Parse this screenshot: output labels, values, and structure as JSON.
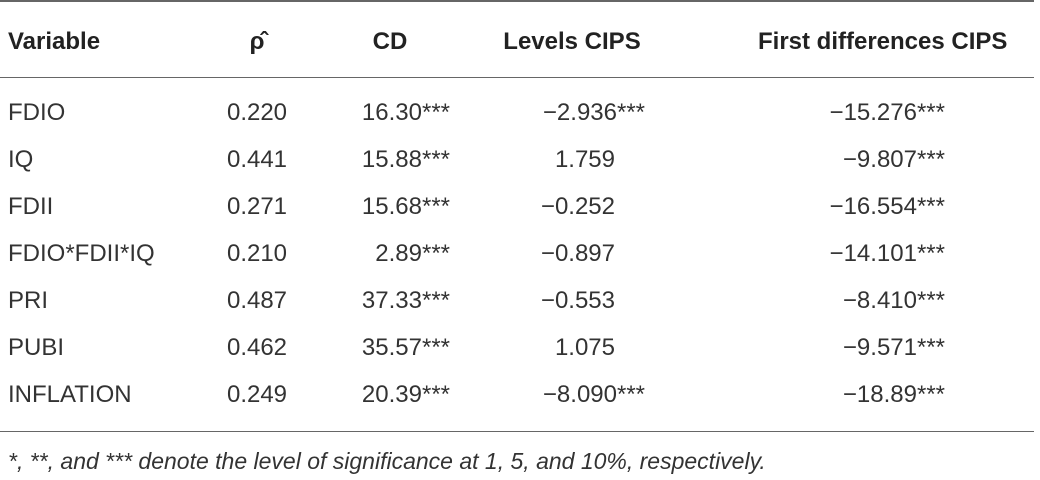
{
  "table": {
    "header": [
      "Variable",
      "ρ̂",
      "CD",
      "Levels CIPS",
      "First differences CIPS"
    ],
    "rows": [
      [
        "FDIO",
        "0.220",
        "16.30***",
        "−2.936***",
        "−15.276***"
      ],
      [
        "IQ",
        "0.441",
        "15.88***",
        "1.759",
        "−9.807***"
      ],
      [
        "FDII",
        "0.271",
        "15.68***",
        "−0.252",
        "−16.554***"
      ],
      [
        "FDIO*FDII*IQ",
        "0.210",
        "2.89***",
        "−0.897",
        "−14.101***"
      ],
      [
        "PRI",
        "0.487",
        "37.33***",
        "−0.553",
        "−8.410***"
      ],
      [
        "PUBI",
        "0.462",
        "35.57***",
        "1.075",
        "−9.571***"
      ],
      [
        "INFLATION",
        "0.249",
        "20.39***",
        "−8.090***",
        "−18.89***"
      ]
    ]
  },
  "footnote": "*, **, and *** denote the level of significance at 1, 5, and 10%, respectively."
}
